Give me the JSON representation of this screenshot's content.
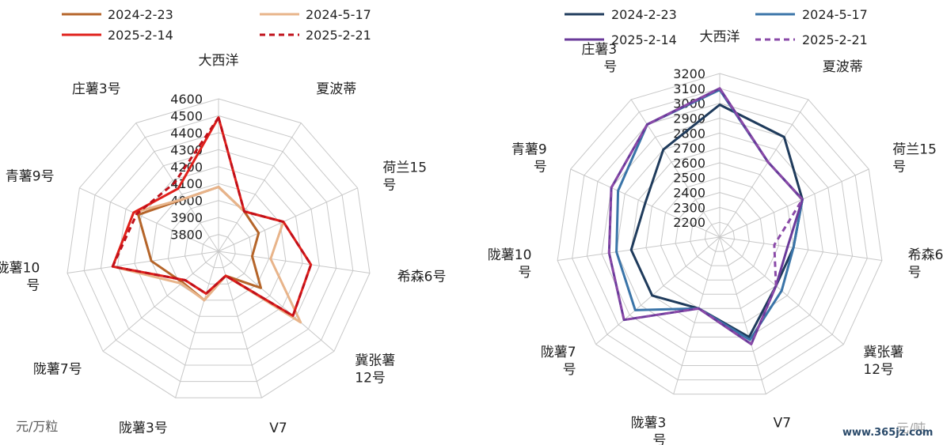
{
  "chart_data": [
    {
      "type": "radar",
      "title": "",
      "unit_label": "元/万粒",
      "categories": [
        "大西洋",
        "夏波蒂",
        "荷兰15号",
        "希森6号",
        "冀张薯12号",
        "V7",
        "陇薯3号",
        "陇薯7号",
        "陇薯10号",
        "青薯9号",
        "庄薯3号"
      ],
      "category_lines": [
        [
          "大西洋"
        ],
        [
          "夏波蒂"
        ],
        [
          "荷兰15",
          "号"
        ],
        [
          "希森6号"
        ],
        [
          "冀张薯",
          "12号"
        ],
        [
          "V7"
        ],
        [
          "陇薯3号"
        ],
        [
          "陇薯7号"
        ],
        [
          "陇薯10",
          "号"
        ],
        [
          "青薯9号"
        ],
        [
          "庄薯3号"
        ]
      ],
      "rlim": [
        3700,
        4600
      ],
      "ticks": [
        3800,
        3900,
        4000,
        4100,
        4200,
        4300,
        4400,
        4500,
        4600
      ],
      "legend": "top",
      "series": [
        {
          "name": "2024-2-23",
          "color": "#b5652a",
          "dash": false,
          "values": [
            4080,
            3980,
            3960,
            3900,
            4030,
            3850,
            4000,
            3980,
            4100,
            4220,
            4070
          ]
        },
        {
          "name": "2024-5-17",
          "color": "#e8b48a",
          "dash": false,
          "values": [
            4080,
            3980,
            4120,
            4010,
            4340,
            3850,
            4000,
            3990,
            4330,
            4250,
            4070
          ]
        },
        {
          "name": "2025-2-14",
          "color": "#e0201b",
          "dash": false,
          "values": [
            4490,
            3980,
            4120,
            4250,
            4280,
            3850,
            3960,
            3960,
            4330,
            4250,
            4140
          ]
        },
        {
          "name": "2025-2-21",
          "color": "#c0101a",
          "dash": true,
          "values": [
            4490,
            3980,
            4120,
            4250,
            4280,
            3850,
            3960,
            3960,
            4330,
            4230,
            4180
          ]
        }
      ]
    },
    {
      "type": "radar",
      "title": "",
      "unit_label": "元/吨",
      "categories": [
        "大西洋",
        "夏波蒂",
        "荷兰15号",
        "希森6号",
        "冀张薯12号",
        "V7",
        "陇薯3号",
        "陇薯7号",
        "陇薯10号",
        "青薯9号",
        "庄薯3号"
      ],
      "category_lines": [
        [
          "大西洋"
        ],
        [
          "夏波蒂"
        ],
        [
          "荷兰15",
          "号"
        ],
        [
          "希森6",
          "号"
        ],
        [
          "冀张薯",
          "12号"
        ],
        [
          "V7"
        ],
        [
          "陇薯3",
          "号"
        ],
        [
          "陇薯7",
          "号"
        ],
        [
          "陇薯10",
          "号"
        ],
        [
          "青薯9",
          "号"
        ],
        [
          "庄薯3",
          "号"
        ]
      ],
      "rlim": [
        2100,
        3200
      ],
      "ticks": [
        2200,
        2300,
        2400,
        2500,
        2600,
        2700,
        2800,
        2900,
        3000,
        3100,
        3200
      ],
      "legend": "top",
      "series": [
        {
          "name": "2024-2-23",
          "color": "#1f3b5c",
          "dash": false,
          "values": [
            2990,
            2900,
            2710,
            2600,
            2600,
            2800,
            2600,
            2700,
            2700,
            2650,
            2800
          ]
        },
        {
          "name": "2024-5-17",
          "color": "#3a74a8",
          "dash": false,
          "values": [
            3090,
            2700,
            2710,
            2600,
            2650,
            2820,
            2600,
            2850,
            2800,
            2850,
            3000
          ]
        },
        {
          "name": "2025-2-14",
          "color": "#6a3a9a",
          "dash": false,
          "values": [
            3100,
            2700,
            2710,
            2560,
            2600,
            2850,
            2600,
            2950,
            2850,
            2900,
            3000
          ]
        },
        {
          "name": "2025-2-21",
          "color": "#8a4aa8",
          "dash": true,
          "values": [
            3100,
            2700,
            2710,
            2470,
            2600,
            2850,
            2600,
            2950,
            2850,
            2900,
            3000
          ]
        }
      ]
    }
  ],
  "watermark": "www.365jz.com"
}
